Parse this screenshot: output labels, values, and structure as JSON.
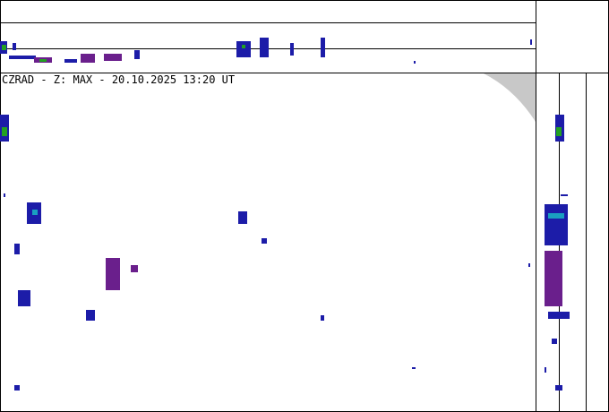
{
  "header": {
    "title": "CZRAD - Z: MAX - 20.10.2025 13:20 UT"
  }
}
